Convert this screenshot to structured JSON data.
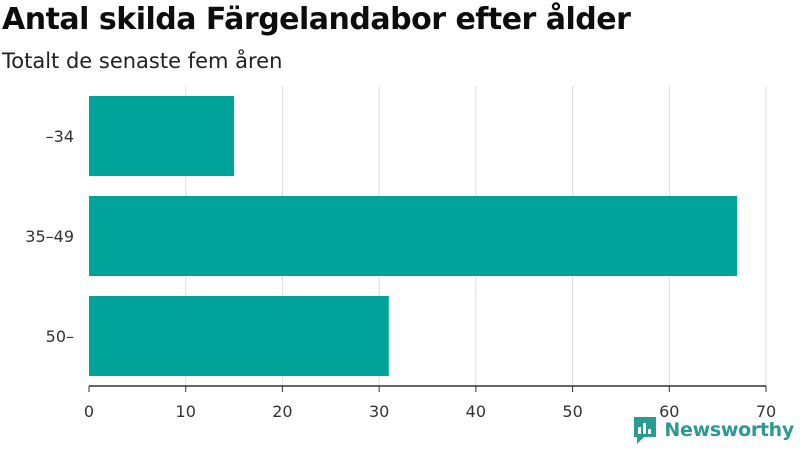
{
  "title": "Antal skilda Färgelandabor efter ålder",
  "subtitle": "Totalt de senaste fem åren",
  "brand": {
    "name": "Newsworthy",
    "color": "#2a9a92",
    "icon": "newsworthy-logo-icon"
  },
  "chart_data": {
    "type": "bar",
    "orientation": "horizontal",
    "categories": [
      "–34",
      "35–49",
      "50–"
    ],
    "values": [
      15,
      67,
      31
    ],
    "xlim": [
      0,
      70
    ],
    "xticks": [
      0,
      10,
      20,
      30,
      40,
      50,
      60,
      70
    ],
    "grid": true,
    "bar_color": "#00a39a",
    "grid_color": "#dddddd",
    "axis_color": "#333333"
  }
}
